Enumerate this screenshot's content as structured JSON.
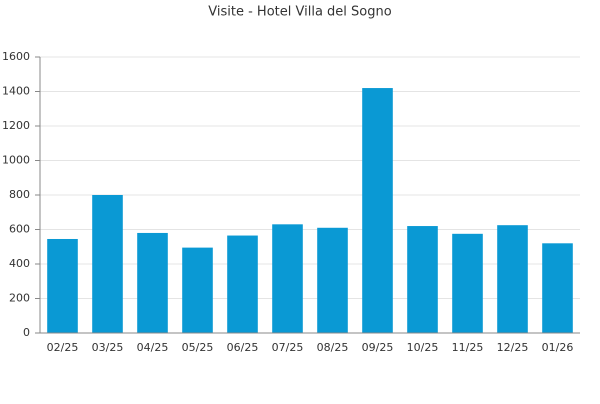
{
  "chart_data": {
    "type": "bar",
    "title": "Visite - Hotel Villa del Sogno",
    "categories": [
      "02/25",
      "03/25",
      "04/25",
      "05/25",
      "06/25",
      "07/25",
      "08/25",
      "09/25",
      "10/25",
      "11/25",
      "12/25",
      "01/26"
    ],
    "values": [
      545,
      800,
      580,
      495,
      565,
      630,
      610,
      1420,
      620,
      575,
      625,
      520
    ],
    "color": "#0a99d4",
    "ylim": [
      0,
      1600
    ],
    "yticks": [
      0,
      200,
      400,
      600,
      800,
      1000,
      1200,
      1400,
      1600
    ],
    "grid": true
  }
}
